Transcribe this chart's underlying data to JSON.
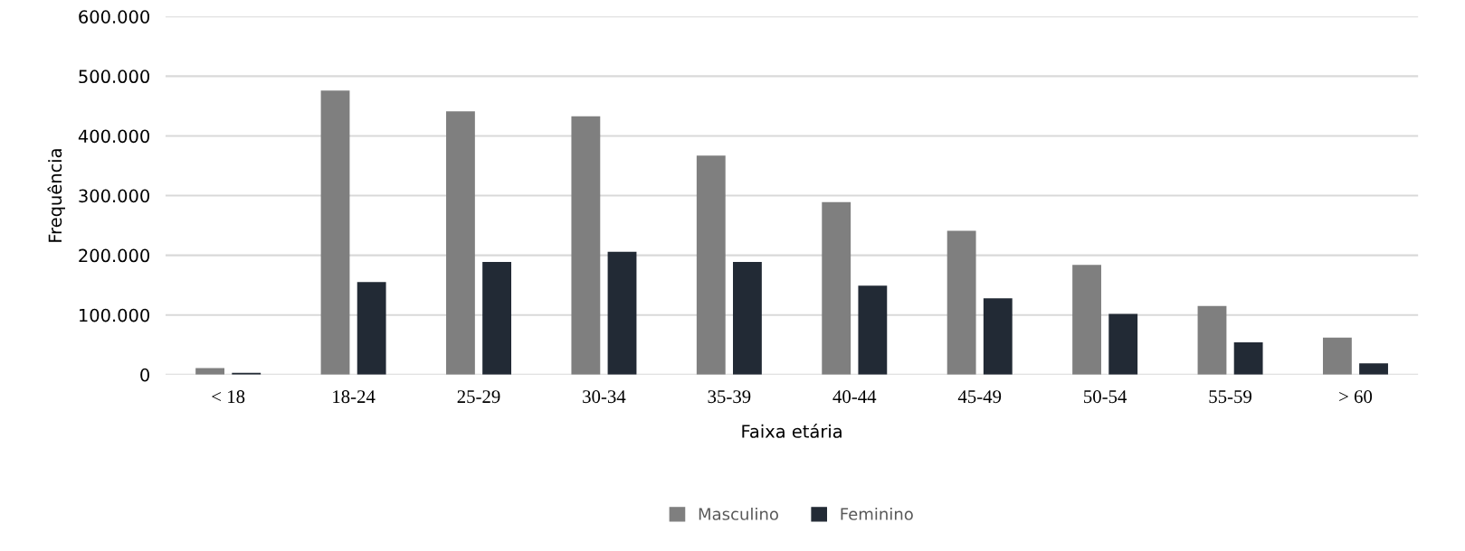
{
  "chart_data": {
    "type": "bar",
    "xlabel": "Faixa etária",
    "ylabel": "Frequência",
    "categories": [
      "< 18",
      "18-24",
      "25-29",
      "30-34",
      "35-39",
      "40-44",
      "45-49",
      "50-54",
      "55-59",
      "> 60"
    ],
    "series": [
      {
        "name": "Masculino",
        "color": "#7f7f7f",
        "values": [
          11000,
          476000,
          441000,
          433000,
          367000,
          289000,
          241000,
          184000,
          115000,
          62000
        ]
      },
      {
        "name": "Feminino",
        "color": "#222a35",
        "values": [
          3000,
          155000,
          189000,
          206000,
          189000,
          149000,
          128000,
          102000,
          54000,
          19000
        ]
      }
    ],
    "ylim": [
      0,
      600000
    ],
    "yticks": [
      {
        "value": 0,
        "label": "0"
      },
      {
        "value": 100000,
        "label": "100.000"
      },
      {
        "value": 200000,
        "label": "200.000"
      },
      {
        "value": 300000,
        "label": "300.000"
      },
      {
        "value": 400000,
        "label": "400.000"
      },
      {
        "value": 500000,
        "label": "500.000"
      },
      {
        "value": 600000,
        "label": "600.000"
      }
    ],
    "grid": "y",
    "legend": "bottom"
  }
}
